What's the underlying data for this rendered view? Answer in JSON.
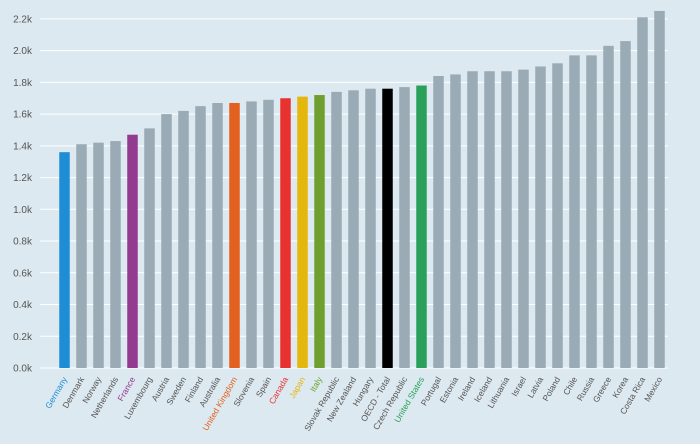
{
  "chart_data": {
    "type": "bar",
    "title": "",
    "xlabel": "",
    "ylabel": "",
    "ylim": [
      0,
      2300
    ],
    "yticks": [
      {
        "value": 0,
        "label": "0.0k"
      },
      {
        "value": 200,
        "label": "0.2k"
      },
      {
        "value": 400,
        "label": "0.4k"
      },
      {
        "value": 600,
        "label": "0.6k"
      },
      {
        "value": 800,
        "label": "0.8k"
      },
      {
        "value": 1000,
        "label": "1.0k"
      },
      {
        "value": 1200,
        "label": "1.2k"
      },
      {
        "value": 1400,
        "label": "1.4k"
      },
      {
        "value": 1600,
        "label": "1.6k"
      },
      {
        "value": 1800,
        "label": "1.8k"
      },
      {
        "value": 2000,
        "label": "2.0k"
      },
      {
        "value": 2200,
        "label": "2.2k"
      }
    ],
    "grid": true,
    "default_bar_color": "#9aabb5",
    "default_label_color": "#555555",
    "categories": [
      "Germany",
      "Denmark",
      "Norway",
      "Netherlands",
      "France",
      "Luxembourg",
      "Austria",
      "Sweden",
      "Finland",
      "Australia",
      "United Kingdom",
      "Slovenia",
      "Spain",
      "Canada",
      "Japan",
      "Italy",
      "Slovak Republic",
      "New Zealand",
      "Hungary",
      "OECD - Total",
      "Czech Republic",
      "United States",
      "Portugal",
      "Estonia",
      "Ireland",
      "Iceland",
      "Lithuania",
      "Israel",
      "Latvia",
      "Poland",
      "Chile",
      "Russia",
      "Greece",
      "Korea",
      "Costa Rica",
      "Mexico"
    ],
    "values": [
      1360,
      1410,
      1420,
      1430,
      1470,
      1510,
      1600,
      1620,
      1650,
      1670,
      1670,
      1680,
      1690,
      1700,
      1710,
      1720,
      1740,
      1750,
      1760,
      1760,
      1770,
      1780,
      1840,
      1850,
      1870,
      1870,
      1870,
      1880,
      1900,
      1920,
      1970,
      1970,
      2030,
      2060,
      2210,
      2250
    ],
    "highlights": {
      "Germany": {
        "bar": "#1f8dd6",
        "label": "#1f8dd6"
      },
      "France": {
        "bar": "#933b8e",
        "label": "#933b8e"
      },
      "United Kingdom": {
        "bar": "#e3601f",
        "label": "#e3601f"
      },
      "Canada": {
        "bar": "#e8322f",
        "label": "#e8322f"
      },
      "Japan": {
        "bar": "#e5b60c",
        "label": "#e5b60c"
      },
      "Italy": {
        "bar": "#6fa02f",
        "label": "#6fa02f"
      },
      "OECD - Total": {
        "bar": "#000000",
        "label": "#555555"
      },
      "United States": {
        "bar": "#2aa05a",
        "label": "#2aa05a"
      }
    }
  }
}
